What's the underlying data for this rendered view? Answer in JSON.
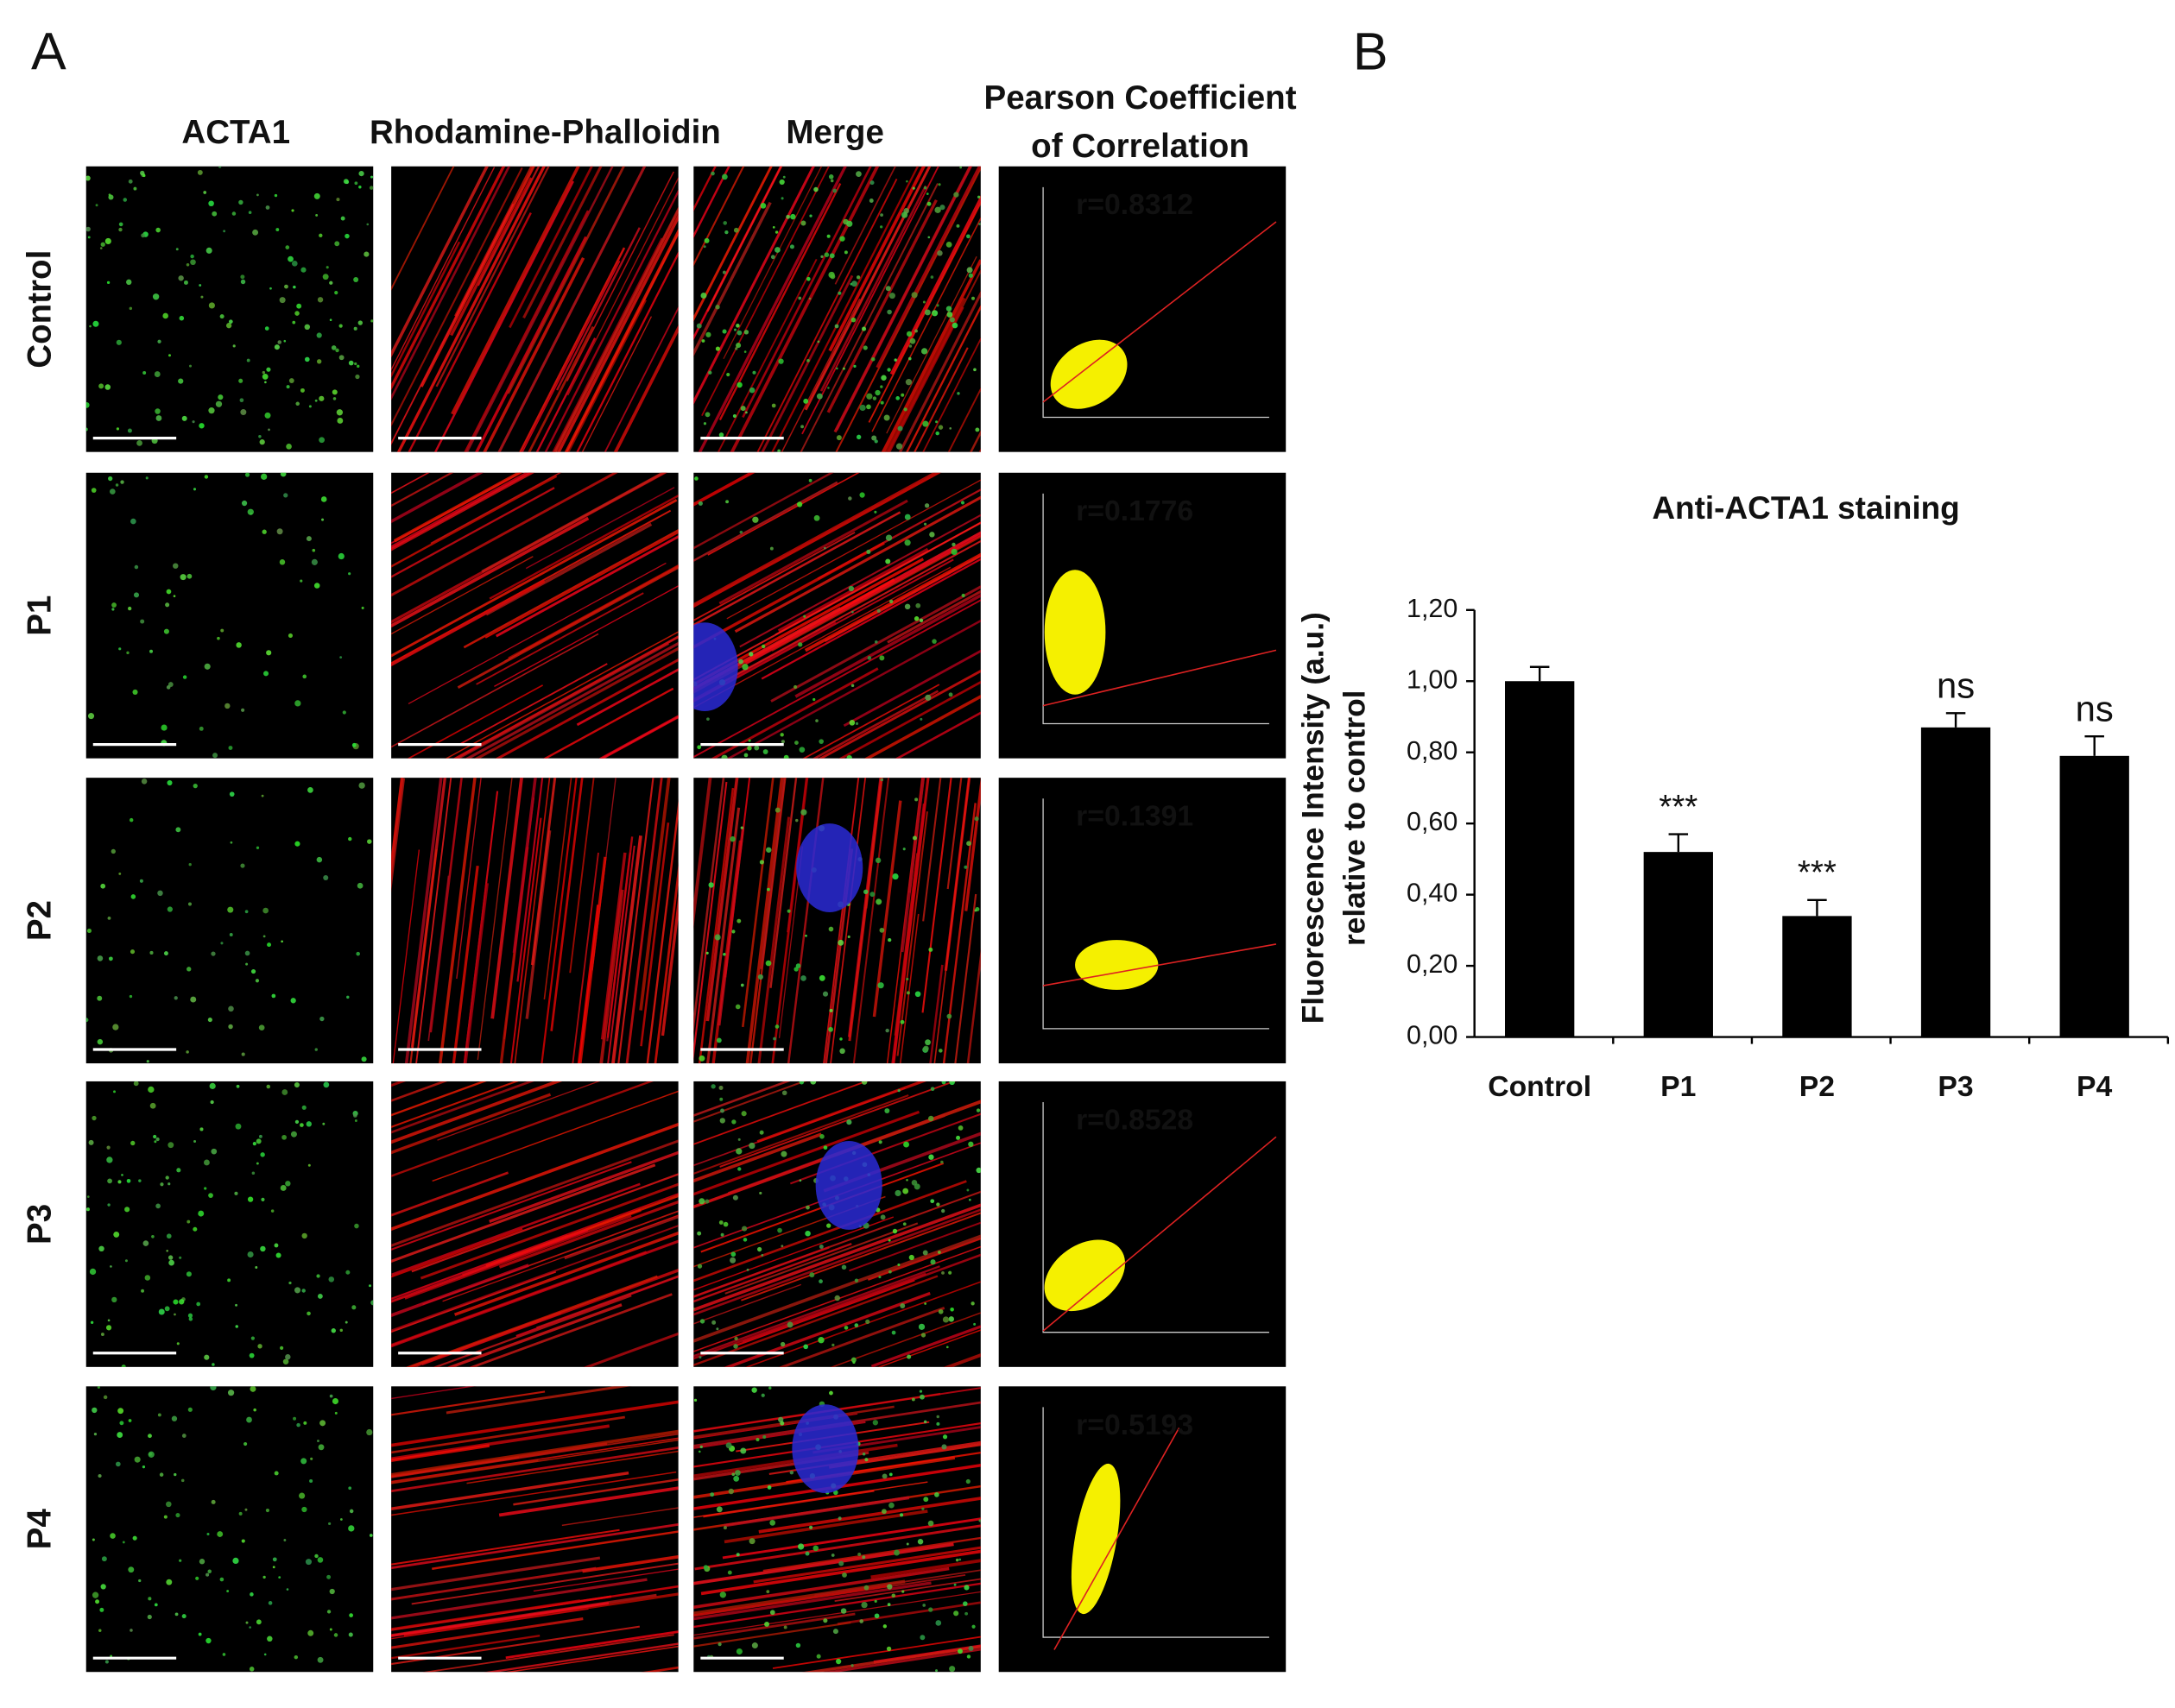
{
  "panel_labels": [
    "A",
    "B"
  ],
  "panel_a": {
    "column_headers": [
      "ACTA1",
      "Rhodamine-Phalloidin",
      "Merge",
      [
        "Pearson Coefficient",
        "of Correlation"
      ]
    ],
    "rows": [
      {
        "label": "Control",
        "pearson": "r=0.8312"
      },
      {
        "label": "P1",
        "pearson": "r=0.1776"
      },
      {
        "label": "P2",
        "pearson": "r=0.1391"
      },
      {
        "label": "P3",
        "pearson": "r=0.8528"
      },
      {
        "label": "P4",
        "pearson": "r=0.5193"
      }
    ]
  },
  "chart_data": {
    "type": "bar",
    "title": "Anti-ACTA1 staining",
    "ylabel": [
      "Fluorescence Intensity (a.u.)",
      "relative to control"
    ],
    "categories": [
      "Control",
      "P1",
      "P2",
      "P3",
      "P4"
    ],
    "values": [
      1.0,
      0.52,
      0.34,
      0.87,
      0.79
    ],
    "errors": [
      0.04,
      0.05,
      0.045,
      0.04,
      0.055
    ],
    "significance": [
      null,
      "***",
      "***",
      "ns",
      "ns"
    ],
    "color": "#000000",
    "ylim": [
      0,
      1.2
    ],
    "yticks": [
      {
        "value": 0,
        "label": "0,00"
      },
      {
        "value": 0.2,
        "label": "0,20"
      },
      {
        "value": 0.4,
        "label": "0,40"
      },
      {
        "value": 0.6,
        "label": "0,60"
      },
      {
        "value": 0.8,
        "label": "0,80"
      },
      {
        "value": 1.0,
        "label": "1,00"
      },
      {
        "value": 1.2,
        "label": "1,20"
      }
    ],
    "grid": false
  }
}
